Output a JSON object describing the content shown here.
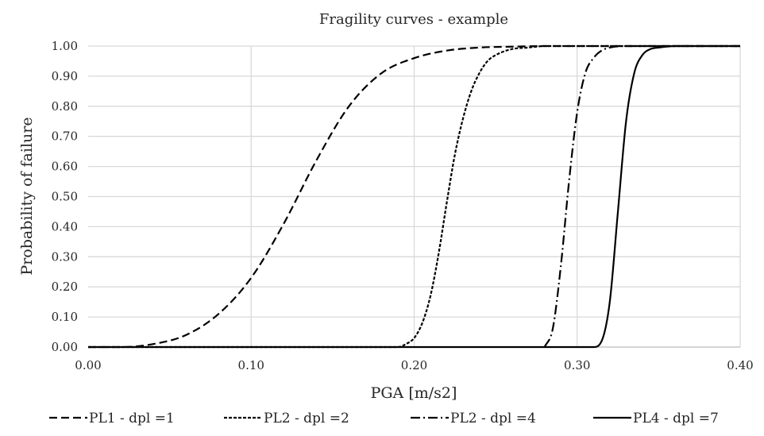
{
  "chart_data": {
    "type": "line",
    "title": "Fragility curves - example",
    "xlabel": "PGA [m/s2]",
    "ylabel": "Probability of failure",
    "xlim": [
      0,
      0.4
    ],
    "ylim": [
      0,
      1
    ],
    "x_ticks": [
      "0.00",
      "0.10",
      "0.20",
      "0.30",
      "0.40"
    ],
    "y_ticks": [
      "0.00",
      "0.10",
      "0.20",
      "0.30",
      "0.40",
      "0.50",
      "0.60",
      "0.70",
      "0.80",
      "0.90",
      "1.00"
    ],
    "grid": true,
    "legend_position": "bottom",
    "line_color": "#000000",
    "series": [
      {
        "name": "PL1 - dpl =1",
        "dash": "dashed",
        "x": [
          0.0,
          0.02,
          0.04,
          0.06,
          0.08,
          0.1,
          0.12,
          0.14,
          0.16,
          0.18,
          0.2,
          0.22,
          0.24,
          0.26,
          0.28,
          0.3,
          0.4
        ],
        "y": [
          0.0,
          0.0,
          0.01,
          0.04,
          0.11,
          0.23,
          0.41,
          0.62,
          0.8,
          0.91,
          0.96,
          0.985,
          0.995,
          0.998,
          1.0,
          1.0,
          1.0
        ]
      },
      {
        "name": "PL2 - dpl =2",
        "dash": "dotted",
        "x": [
          0.0,
          0.19,
          0.195,
          0.2,
          0.205,
          0.21,
          0.215,
          0.22,
          0.225,
          0.23,
          0.235,
          0.24,
          0.245,
          0.25,
          0.26,
          0.27,
          0.28,
          0.3,
          0.4
        ],
        "y": [
          0.0,
          0.0,
          0.01,
          0.03,
          0.08,
          0.17,
          0.31,
          0.48,
          0.64,
          0.76,
          0.85,
          0.91,
          0.95,
          0.97,
          0.99,
          0.995,
          1.0,
          1.0,
          1.0
        ]
      },
      {
        "name": "PL2 - dpl =4",
        "dash": "dash-dot",
        "x": [
          0.28,
          0.285,
          0.29,
          0.295,
          0.3,
          0.305,
          0.31,
          0.315,
          0.32,
          0.33,
          0.34,
          0.4
        ],
        "y": [
          0.0,
          0.06,
          0.27,
          0.55,
          0.78,
          0.91,
          0.96,
          0.985,
          0.995,
          1.0,
          1.0,
          1.0
        ]
      },
      {
        "name": "PL4 - dpl =7",
        "dash": "solid",
        "x": [
          0.0,
          0.31,
          0.315,
          0.32,
          0.325,
          0.33,
          0.335,
          0.34,
          0.345,
          0.35,
          0.36,
          0.37,
          0.4
        ],
        "y": [
          0.0,
          0.0,
          0.02,
          0.15,
          0.45,
          0.75,
          0.91,
          0.97,
          0.99,
          0.995,
          1.0,
          1.0,
          1.0
        ]
      }
    ]
  }
}
